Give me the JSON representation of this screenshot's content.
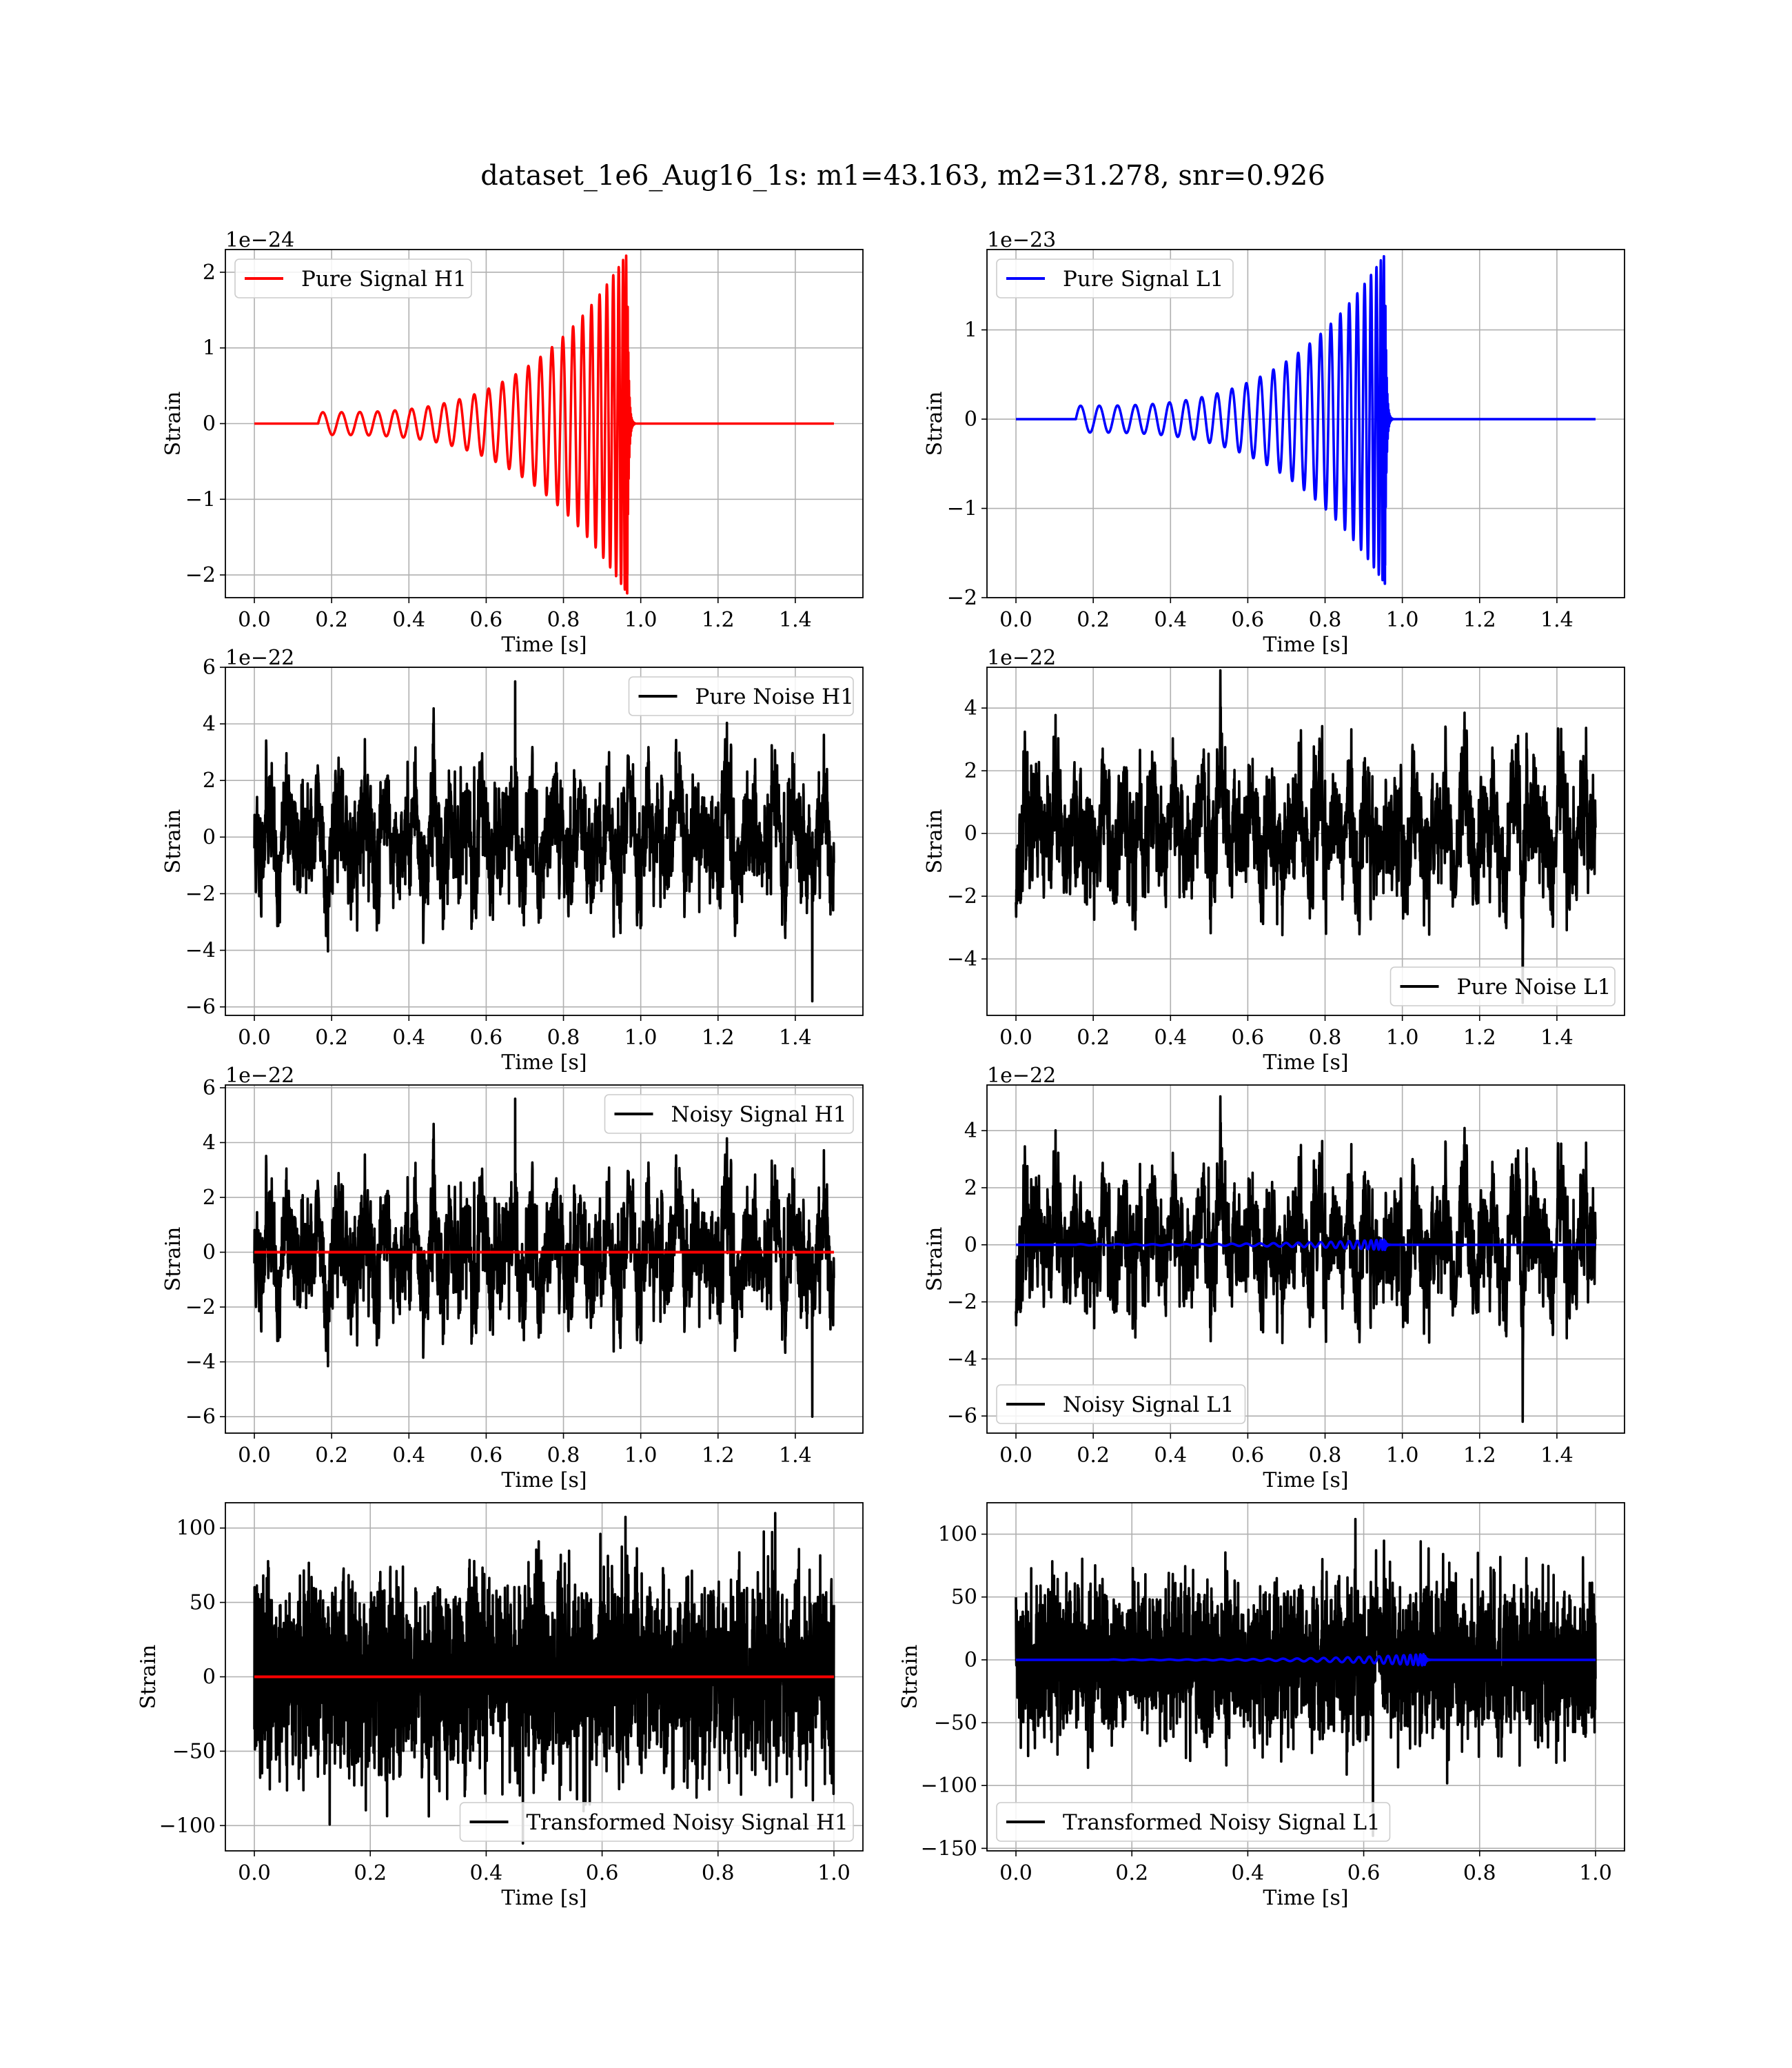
{
  "figure": {
    "suptitle": "dataset_1e6_Aug16_1s: m1=43.163, m2=31.278, snr=0.926"
  },
  "chart_data": [
    {
      "id": "pure-signal-h1",
      "type": "line",
      "title": "",
      "xlabel": "Time [s]",
      "ylabel": "Strain",
      "multiplier": "1e−24",
      "xlim": [
        -0.075,
        1.575
      ],
      "ylim": [
        -2.3,
        2.3
      ],
      "xticks": [
        0.0,
        0.2,
        0.4,
        0.6,
        0.8,
        1.0,
        1.2,
        1.4
      ],
      "xtick_labels": [
        "0.0",
        "0.2",
        "0.4",
        "0.6",
        "0.8",
        "1.0",
        "1.2",
        "1.4"
      ],
      "yticks": [
        -2,
        -1,
        0,
        1,
        2
      ],
      "ytick_labels": [
        "−2",
        "−1",
        "0",
        "1",
        "2"
      ],
      "grid": true,
      "legend_position": "upper-left",
      "series": [
        {
          "name": "Pure Signal H1",
          "color": "#ff0000",
          "kind": "chirp",
          "t_start": 0.165,
          "t_merge": 0.965,
          "t_end": 1.5,
          "amp_start": 0.15,
          "amp_peak": 2.25,
          "cycles": 26,
          "ringdown": 0.02,
          "show_in_legend": true
        }
      ]
    },
    {
      "id": "pure-signal-l1",
      "type": "line",
      "title": "",
      "xlabel": "Time [s]",
      "ylabel": "Strain",
      "multiplier": "1e−23",
      "xlim": [
        -0.075,
        1.575
      ],
      "ylim": [
        -2.0,
        1.9
      ],
      "xticks": [
        0.0,
        0.2,
        0.4,
        0.6,
        0.8,
        1.0,
        1.2,
        1.4
      ],
      "xtick_labels": [
        "0.0",
        "0.2",
        "0.4",
        "0.6",
        "0.8",
        "1.0",
        "1.2",
        "1.4"
      ],
      "yticks": [
        -2,
        -1,
        0,
        1
      ],
      "ytick_labels": [
        "−2",
        "−1",
        "0",
        "1"
      ],
      "grid": true,
      "legend_position": "upper-left",
      "series": [
        {
          "name": "Pure Signal L1",
          "color": "#0000ff",
          "kind": "chirp",
          "t_start": 0.155,
          "t_merge": 0.955,
          "t_end": 1.5,
          "amp_start": 0.15,
          "amp_peak": 1.85,
          "cycles": 26,
          "ringdown": 0.02,
          "show_in_legend": true
        }
      ]
    },
    {
      "id": "pure-noise-h1",
      "type": "line",
      "title": "",
      "xlabel": "Time [s]",
      "ylabel": "Strain",
      "multiplier": "1e−22",
      "xlim": [
        -0.075,
        1.575
      ],
      "ylim": [
        -6.3,
        6.0
      ],
      "xticks": [
        0.0,
        0.2,
        0.4,
        0.6,
        0.8,
        1.0,
        1.2,
        1.4
      ],
      "xtick_labels": [
        "0.0",
        "0.2",
        "0.4",
        "0.6",
        "0.8",
        "1.0",
        "1.2",
        "1.4"
      ],
      "yticks": [
        -6,
        -4,
        -2,
        0,
        2,
        4,
        6
      ],
      "ytick_labels": [
        "−6",
        "−4",
        "−2",
        "0",
        "2",
        "4",
        "6"
      ],
      "grid": true,
      "legend_position": "upper-right",
      "series": [
        {
          "name": "Pure Noise H1",
          "color": "#000000",
          "kind": "noise",
          "t_start": 0.0,
          "t_end": 1.5,
          "amp": 1.7,
          "max": 5.5,
          "min": -5.8,
          "seed": 11,
          "show_in_legend": true
        }
      ]
    },
    {
      "id": "pure-noise-l1",
      "type": "line",
      "title": "",
      "xlabel": "Time [s]",
      "ylabel": "Strain",
      "multiplier": "1e−22",
      "xlim": [
        -0.075,
        1.575
      ],
      "ylim": [
        -5.8,
        5.3
      ],
      "xticks": [
        0.0,
        0.2,
        0.4,
        0.6,
        0.8,
        1.0,
        1.2,
        1.4
      ],
      "xtick_labels": [
        "0.0",
        "0.2",
        "0.4",
        "0.6",
        "0.8",
        "1.0",
        "1.2",
        "1.4"
      ],
      "yticks": [
        -4,
        -2,
        0,
        2,
        4
      ],
      "ytick_labels": [
        "−4",
        "−2",
        "0",
        "2",
        "4"
      ],
      "grid": true,
      "legend_position": "lower-right",
      "series": [
        {
          "name": "Pure Noise L1",
          "color": "#000000",
          "kind": "noise",
          "t_start": 0.0,
          "t_end": 1.5,
          "amp": 1.6,
          "max": 5.2,
          "min": -5.4,
          "seed": 23,
          "show_in_legend": true
        }
      ]
    },
    {
      "id": "noisy-signal-h1",
      "type": "line",
      "title": "",
      "xlabel": "Time [s]",
      "ylabel": "Strain",
      "multiplier": "1e−22",
      "xlim": [
        -0.075,
        1.575
      ],
      "ylim": [
        -6.6,
        6.1
      ],
      "xticks": [
        0.0,
        0.2,
        0.4,
        0.6,
        0.8,
        1.0,
        1.2,
        1.4
      ],
      "xtick_labels": [
        "0.0",
        "0.2",
        "0.4",
        "0.6",
        "0.8",
        "1.0",
        "1.2",
        "1.4"
      ],
      "yticks": [
        -6,
        -4,
        -2,
        0,
        2,
        4,
        6
      ],
      "ytick_labels": [
        "−6",
        "−4",
        "−2",
        "0",
        "2",
        "4",
        "6"
      ],
      "grid": true,
      "legend_position": "upper-right",
      "series": [
        {
          "name": "Noisy Signal H1",
          "color": "#000000",
          "kind": "noise",
          "t_start": 0.0,
          "t_end": 1.5,
          "amp": 1.75,
          "max": 5.6,
          "min": -6.0,
          "seed": 11,
          "show_in_legend": true
        },
        {
          "name": "",
          "color": "#ff0000",
          "kind": "flat",
          "t_start": 0.0,
          "t_end": 1.5,
          "value": 0,
          "show_in_legend": false
        }
      ]
    },
    {
      "id": "noisy-signal-l1",
      "type": "line",
      "title": "",
      "xlabel": "Time [s]",
      "ylabel": "Strain",
      "multiplier": "1e−22",
      "xlim": [
        -0.075,
        1.575
      ],
      "ylim": [
        -6.6,
        5.6
      ],
      "xticks": [
        0.0,
        0.2,
        0.4,
        0.6,
        0.8,
        1.0,
        1.2,
        1.4
      ],
      "xtick_labels": [
        "0.0",
        "0.2",
        "0.4",
        "0.6",
        "0.8",
        "1.0",
        "1.2",
        "1.4"
      ],
      "yticks": [
        -6,
        -4,
        -2,
        0,
        2,
        4
      ],
      "ytick_labels": [
        "−6",
        "−4",
        "−2",
        "0",
        "2",
        "4"
      ],
      "grid": true,
      "legend_position": "lower-left",
      "series": [
        {
          "name": "Noisy Signal L1",
          "color": "#000000",
          "kind": "noise",
          "t_start": 0.0,
          "t_end": 1.5,
          "amp": 1.7,
          "max": 5.2,
          "min": -6.2,
          "seed": 23,
          "show_in_legend": true
        },
        {
          "name": "",
          "color": "#0000ff",
          "kind": "chirp",
          "t_start": 0.155,
          "t_merge": 0.955,
          "t_end": 1.5,
          "amp_start": 0.02,
          "amp_peak": 0.18,
          "cycles": 26,
          "ringdown": 0.02,
          "show_in_legend": false
        }
      ]
    },
    {
      "id": "transformed-noisy-signal-h1",
      "type": "line",
      "title": "",
      "xlabel": "Time [s]",
      "ylabel": "Strain",
      "multiplier": "",
      "xlim": [
        -0.05,
        1.05
      ],
      "ylim": [
        -117,
        117
      ],
      "xticks": [
        0.0,
        0.2,
        0.4,
        0.6,
        0.8,
        1.0
      ],
      "xtick_labels": [
        "0.0",
        "0.2",
        "0.4",
        "0.6",
        "0.8",
        "1.0"
      ],
      "yticks": [
        -100,
        -50,
        0,
        50,
        100
      ],
      "ytick_labels": [
        "−100",
        "−50",
        "0",
        "50",
        "100"
      ],
      "grid": true,
      "legend_position": "lower-right",
      "series": [
        {
          "name": "Transformed Noisy Signal H1",
          "color": "#000000",
          "kind": "white",
          "t_start": 0.0,
          "t_end": 1.0,
          "amp": 32,
          "max": 110,
          "min": -112,
          "seed": 37,
          "show_in_legend": true
        },
        {
          "name": "",
          "color": "#ff0000",
          "kind": "flat",
          "t_start": 0.0,
          "t_end": 1.0,
          "value": 0,
          "show_in_legend": false
        }
      ]
    },
    {
      "id": "transformed-noisy-signal-l1",
      "type": "line",
      "title": "",
      "xlabel": "Time [s]",
      "ylabel": "Strain",
      "multiplier": "",
      "xlim": [
        -0.05,
        1.05
      ],
      "ylim": [
        -152,
        125
      ],
      "xticks": [
        0.0,
        0.2,
        0.4,
        0.6,
        0.8,
        1.0
      ],
      "xtick_labels": [
        "0.0",
        "0.2",
        "0.4",
        "0.6",
        "0.8",
        "1.0"
      ],
      "yticks": [
        -150,
        -100,
        -50,
        0,
        50,
        100
      ],
      "ytick_labels": [
        "−150",
        "−100",
        "−50",
        "0",
        "50",
        "100"
      ],
      "grid": true,
      "legend_position": "lower-left",
      "series": [
        {
          "name": "Transformed Noisy Signal L1",
          "color": "#000000",
          "kind": "white",
          "t_start": 0.0,
          "t_end": 1.0,
          "amp": 30,
          "max": 112,
          "min": -140,
          "seed": 41,
          "show_in_legend": true
        },
        {
          "name": "",
          "color": "#0000ff",
          "kind": "chirp",
          "t_start": 0.16,
          "t_merge": 0.705,
          "t_end": 1.0,
          "amp_start": 0.3,
          "amp_peak": 4.5,
          "cycles": 26,
          "ringdown": 0.015,
          "show_in_legend": false
        }
      ]
    }
  ]
}
